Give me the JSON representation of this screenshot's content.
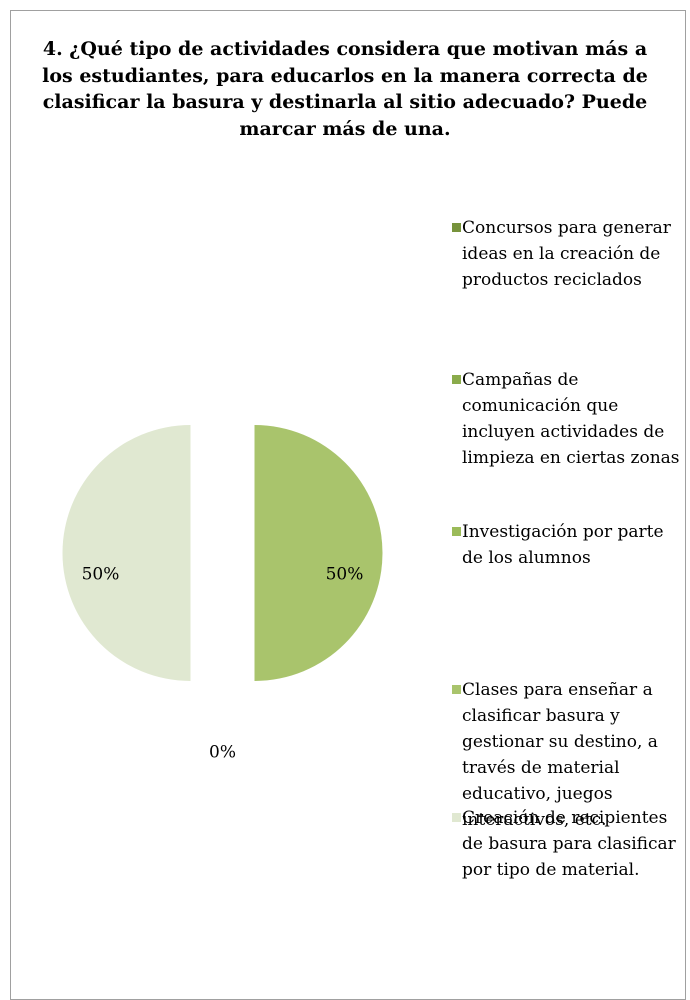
{
  "chart_data": {
    "type": "pie",
    "title": "4. ¿Qué tipo de actividades considera que motivan más a los estudiantes, para educarlos en la manera correcta de clasificar la basura y destinarla al sitio adecuado? Puede marcar más de una.",
    "categories": [
      "Concursos para generar ideas en la creación de productos reciclados",
      "Campañas de comunicación que incluyen actividades de limpieza en ciertas zonas",
      "Investigación por parte de los alumnos",
      "Clases para enseñar a clasificar basura y gestionar su destino, a través de material educativo, juegos interactivos, etc.",
      "Creación de recipientes de basura para clasificar por tipo de material."
    ],
    "values": [
      0,
      0,
      0,
      50,
      50
    ],
    "value_labels": [
      null,
      null,
      "0%",
      "50%",
      "50%"
    ],
    "colors": [
      "#77933c",
      "#8aab4b",
      "#9bbb59",
      "#a9c46c",
      "#e0e8d1"
    ]
  }
}
